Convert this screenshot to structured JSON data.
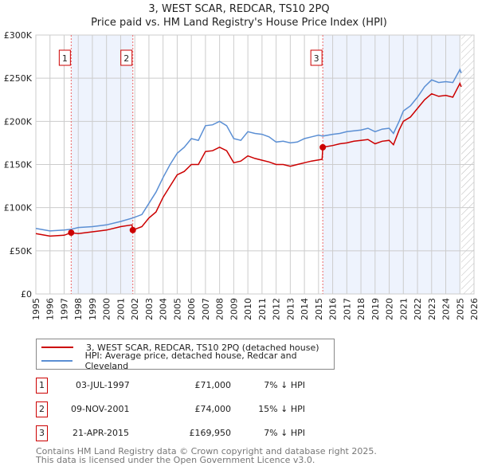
{
  "title": "3, WEST SCAR, REDCAR, TS10 2PQ",
  "subtitle": "Price paid vs. HM Land Registry's House Price Index (HPI)",
  "chart_data": {
    "type": "line",
    "title": "3, WEST SCAR, REDCAR, TS10 2PQ",
    "subtitle": "Price paid vs. HM Land Registry's House Price Index (HPI)",
    "xlim": [
      1995,
      2026
    ],
    "ylim": [
      0,
      300000
    ],
    "xticks": [
      "1995",
      "1996",
      "1997",
      "1998",
      "1999",
      "2000",
      "2001",
      "2002",
      "2003",
      "2004",
      "2005",
      "2006",
      "2007",
      "2008",
      "2009",
      "2010",
      "2011",
      "2012",
      "2013",
      "2014",
      "2015",
      "2016",
      "2017",
      "2018",
      "2019",
      "2020",
      "2021",
      "2022",
      "2023",
      "2024",
      "2025",
      "2026"
    ],
    "yticks": [
      {
        "v": 0,
        "label": "£0"
      },
      {
        "v": 50000,
        "label": "£50K"
      },
      {
        "v": 100000,
        "label": "£100K"
      },
      {
        "v": 150000,
        "label": "£150K"
      },
      {
        "v": 200000,
        "label": "£200K"
      },
      {
        "v": 250000,
        "label": "£250K"
      },
      {
        "v": 300000,
        "label": "£300K"
      }
    ],
    "grid": true,
    "series": [
      {
        "name": "3, WEST SCAR, REDCAR, TS10 2PQ (detached house)",
        "color": "#cc0000",
        "x": [
          1995,
          1996,
          1997,
          1997.5,
          1998,
          1999,
          2000,
          2001,
          2001.8,
          2001.86,
          2002.5,
          2003,
          2003.5,
          2004,
          2004.5,
          2005,
          2005.5,
          2006,
          2006.5,
          2007,
          2007.5,
          2008,
          2008.5,
          2009,
          2009.5,
          2010,
          2010.5,
          2011,
          2011.5,
          2012,
          2012.5,
          2013,
          2013.5,
          2014,
          2014.5,
          2015.25,
          2015.3,
          2016,
          2016.5,
          2017,
          2017.5,
          2018,
          2018.5,
          2019,
          2019.5,
          2020,
          2020.3,
          2020.7,
          2021,
          2021.5,
          2022,
          2022.5,
          2023,
          2023.5,
          2024,
          2024.5,
          2025,
          2025.1
        ],
        "y": [
          70,
          67,
          68,
          71,
          70,
          72,
          74,
          78,
          80,
          74,
          78,
          88,
          95,
          112,
          125,
          138,
          142,
          150,
          150,
          165,
          166,
          170,
          166,
          152,
          154,
          160,
          157,
          155,
          153,
          150,
          150,
          148,
          150,
          152,
          154,
          156,
          170,
          172,
          174,
          175,
          177,
          178,
          179,
          174,
          177,
          178,
          173,
          190,
          200,
          205,
          215,
          225,
          232,
          229,
          230,
          228,
          244,
          240
        ]
      },
      {
        "name": "HPI: Average price, detached house, Redcar and Cleveland",
        "color": "#5b8fd4",
        "x": [
          1995,
          1996,
          1997,
          1997.5,
          1998,
          1999,
          2000,
          2001,
          2001.85,
          2002.5,
          2003,
          2003.5,
          2004,
          2004.5,
          2005,
          2005.5,
          2006,
          2006.5,
          2007,
          2007.5,
          2008,
          2008.5,
          2009,
          2009.5,
          2010,
          2010.5,
          2011,
          2011.5,
          2012,
          2012.5,
          2013,
          2013.5,
          2014,
          2014.5,
          2015,
          2015.3,
          2016,
          2016.5,
          2017,
          2017.5,
          2018,
          2018.5,
          2019,
          2019.5,
          2020,
          2020.3,
          2020.7,
          2021,
          2021.5,
          2022,
          2022.5,
          2023,
          2023.5,
          2024,
          2024.5,
          2025,
          2025.1
        ],
        "y": [
          76,
          73,
          74,
          75,
          77,
          78,
          80,
          84,
          88,
          92,
          105,
          118,
          135,
          150,
          163,
          170,
          180,
          178,
          195,
          196,
          200,
          195,
          180,
          178,
          188,
          186,
          185,
          182,
          176,
          177,
          175,
          176,
          180,
          182,
          184,
          183,
          185,
          186,
          188,
          189,
          190,
          192,
          188,
          191,
          192,
          186,
          200,
          212,
          218,
          228,
          240,
          248,
          245,
          246,
          245,
          260,
          256
        ]
      }
    ],
    "y_units": "thousands GBP",
    "sales": [
      {
        "n": "1",
        "x": 1997.5,
        "y": 71,
        "date": "03-JUL-1997",
        "price": "£71,000",
        "hpi": "7% ↓ HPI"
      },
      {
        "n": "2",
        "x": 2001.86,
        "y": 74,
        "date": "09-NOV-2001",
        "price": "£74,000",
        "hpi": "15% ↓ HPI"
      },
      {
        "n": "3",
        "x": 2015.3,
        "y": 169.95,
        "date": "21-APR-2015",
        "price": "£169,950",
        "hpi": "7% ↓ HPI"
      }
    ],
    "shaded": [
      [
        1997.5,
        2001.86
      ],
      [
        2015.3,
        2025.0
      ]
    ],
    "hatched_from": 2025.1,
    "legend": "below"
  },
  "legend": {
    "red": "3, WEST SCAR, REDCAR, TS10 2PQ (detached house)",
    "blue": "HPI: Average price, detached house, Redcar and Cleveland"
  },
  "footer": {
    "line1": "Contains HM Land Registry data © Crown copyright and database right 2025.",
    "line2": "This data is licensed under the Open Government Licence v3.0."
  }
}
